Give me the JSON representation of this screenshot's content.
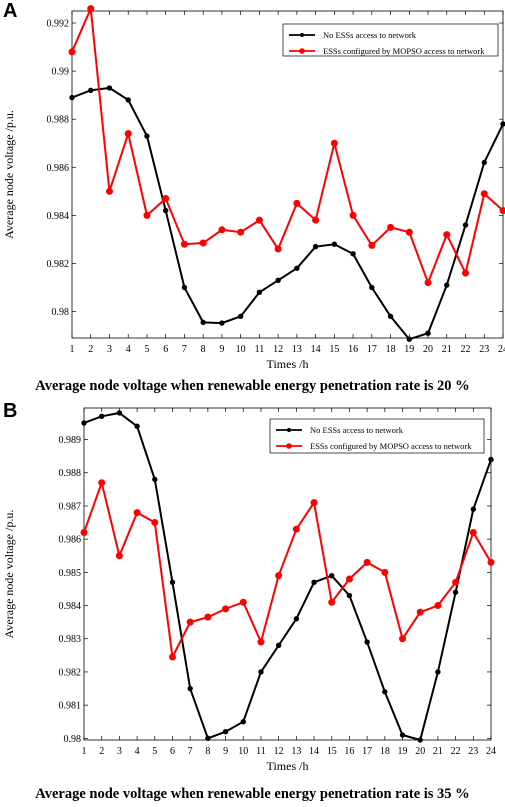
{
  "panels": [
    {
      "letter": "A",
      "caption": "Average node voltage when renewable energy penetration rate is 20 %",
      "chart_data": {
        "type": "line",
        "x": [
          1,
          2,
          3,
          4,
          5,
          6,
          7,
          8,
          9,
          10,
          11,
          12,
          13,
          14,
          15,
          16,
          17,
          18,
          19,
          20,
          21,
          22,
          23,
          24
        ],
        "xlabel": "Times /h",
        "ylabel": "Average node voltage /p.u.",
        "xlim": [
          1,
          24
        ],
        "ylim": [
          0.9789,
          0.9925
        ],
        "yticks": [
          0.98,
          0.982,
          0.984,
          0.986,
          0.988,
          0.99,
          0.992
        ],
        "ytick_labels": [
          "0.98",
          "0.982",
          "0.984",
          "0.986",
          "0.988",
          "0.99",
          "0.992"
        ],
        "grid": false,
        "legend": "top-right",
        "series": [
          {
            "name": "No ESSs access to network",
            "color": "#000000",
            "values": [
              0.9889,
              0.9892,
              0.9893,
              0.9888,
              0.9873,
              0.9842,
              0.981,
              0.97955,
              0.97952,
              0.9798,
              0.9808,
              0.9813,
              0.9818,
              0.9827,
              0.9828,
              0.9824,
              0.981,
              0.9798,
              0.97885,
              0.9791,
              0.9811,
              0.9836,
              0.9862,
              0.9878
            ]
          },
          {
            "name": "ESSs configured by MOPSO access to network",
            "color": "#ff0000",
            "values": [
              0.9908,
              0.9926,
              0.985,
              0.9874,
              0.984,
              0.9847,
              0.9828,
              0.98285,
              0.9834,
              0.9833,
              0.9838,
              0.9826,
              0.9845,
              0.9838,
              0.987,
              0.984,
              0.98275,
              0.9835,
              0.9833,
              0.9812,
              0.9832,
              0.9816,
              0.9849,
              0.9842
            ]
          }
        ]
      }
    },
    {
      "letter": "B",
      "caption": "Average node voltage when renewable energy penetration rate is 35 %",
      "chart_data": {
        "type": "line",
        "x": [
          1,
          2,
          3,
          4,
          5,
          6,
          7,
          8,
          9,
          10,
          11,
          12,
          13,
          14,
          15,
          16,
          17,
          18,
          19,
          20,
          21,
          22,
          23,
          24
        ],
        "xlabel": "Times /h",
        "ylabel": "Average node voltage /p.u.",
        "xlim": [
          1,
          24
        ],
        "ylim": [
          0.97995,
          0.98995
        ],
        "yticks": [
          0.98,
          0.981,
          0.982,
          0.983,
          0.984,
          0.985,
          0.986,
          0.987,
          0.988,
          0.989
        ],
        "ytick_labels": [
          "0.98",
          "0.981",
          "0.982",
          "0.983",
          "0.984",
          "0.985",
          "0.986",
          "0.987",
          "0.988",
          "0.989"
        ],
        "grid": false,
        "legend": "top-right",
        "series": [
          {
            "name": "No ESSs access to network",
            "color": "#000000",
            "values": [
              0.9895,
              0.9897,
              0.9898,
              0.9894,
              0.9878,
              0.9847,
              0.9815,
              0.98,
              0.9802,
              0.9805,
              0.982,
              0.9828,
              0.9836,
              0.9847,
              0.9849,
              0.9843,
              0.9829,
              0.9814,
              0.9801,
              0.97995,
              0.982,
              0.9844,
              0.9869,
              0.9884
            ]
          },
          {
            "name": "ESSs configured by MOPSO access to network",
            "color": "#ff0000",
            "values": [
              0.9862,
              0.9877,
              0.9855,
              0.9868,
              0.9865,
              0.98245,
              0.9835,
              0.98365,
              0.9839,
              0.9841,
              0.9829,
              0.9849,
              0.9863,
              0.9871,
              0.9841,
              0.9848,
              0.9853,
              0.985,
              0.983,
              0.9838,
              0.984,
              0.9847,
              0.9862,
              0.9853
            ]
          }
        ]
      }
    }
  ]
}
